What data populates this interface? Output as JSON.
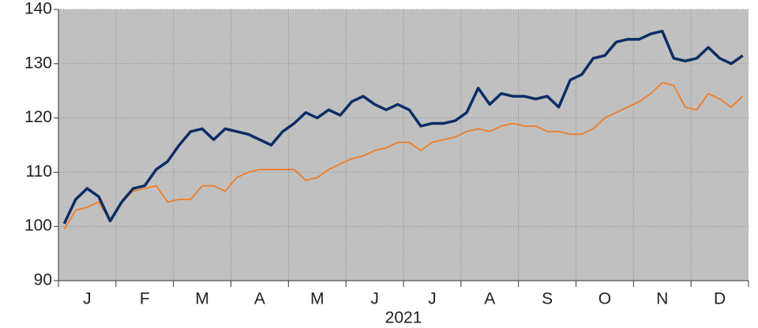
{
  "chart_data": {
    "type": "line",
    "x_label": "2021",
    "categories": [
      null,
      null,
      "J",
      null,
      null,
      null,
      null,
      "F",
      null,
      null,
      null,
      null,
      "M",
      null,
      null,
      null,
      null,
      "A",
      null,
      null,
      null,
      null,
      "M",
      null,
      null,
      null,
      null,
      "J",
      null,
      null,
      null,
      null,
      "J",
      null,
      null,
      null,
      null,
      "A",
      null,
      null,
      null,
      null,
      "S",
      null,
      null,
      null,
      null,
      "O",
      null,
      null,
      null,
      null,
      "N",
      null,
      null,
      null,
      null,
      "D",
      null,
      null
    ],
    "series": [
      {
        "color": "#0b2d66",
        "values": [
          100.5,
          105,
          107,
          105.5,
          101,
          104.5,
          107,
          107.5,
          110.5,
          112,
          115,
          117.5,
          118,
          116,
          118,
          117.5,
          117,
          116,
          115,
          117.5,
          119,
          121,
          120,
          121.5,
          120.5,
          123,
          124,
          122.5,
          121.5,
          122.5,
          121.5,
          118.5,
          119,
          119,
          119.5,
          121,
          125.5,
          122.5,
          124.5,
          124,
          124,
          123.5,
          124,
          122,
          127,
          128,
          131,
          131.5,
          134,
          134.5,
          134.5,
          135.5,
          136,
          131,
          130.5,
          131,
          133,
          131,
          130,
          131.5
        ]
      },
      {
        "color": "#f07d28",
        "values": [
          99.5,
          103,
          103.5,
          104.5,
          101,
          104.5,
          106.5,
          107,
          107.5,
          104.5,
          105,
          105,
          107.5,
          107.5,
          106.5,
          109,
          110,
          110.5,
          110.5,
          110.5,
          110.5,
          108.5,
          109,
          110.5,
          111.5,
          112.5,
          113,
          114,
          114.5,
          115.5,
          115.5,
          114,
          115.5,
          116,
          116.5,
          117.5,
          118,
          117.5,
          118.5,
          119,
          118.5,
          118.5,
          117.5,
          117.5,
          117,
          117,
          118,
          120,
          121,
          122,
          123,
          124.5,
          126.5,
          126,
          122,
          121.5,
          124.5,
          123.5,
          122,
          124
        ]
      }
    ],
    "ylim": [
      90,
      140
    ],
    "yticks": [
      90,
      100,
      110,
      120,
      130,
      140
    ],
    "grid": true
  }
}
